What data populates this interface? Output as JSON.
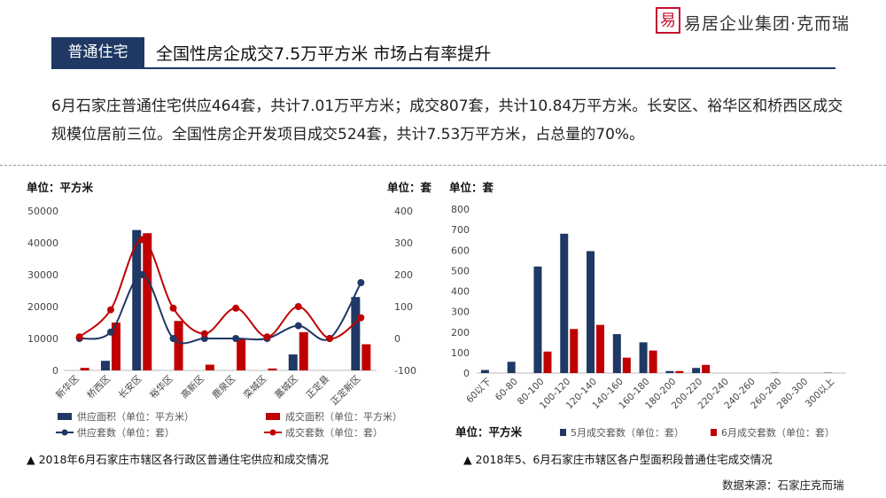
{
  "header": {
    "logo_glyph": "易",
    "brand": "易居企业集团·克而瑞",
    "tag": "普通住宅",
    "title": "全国性房企成交7.5万平方米 市场占有率提升"
  },
  "intro_text": "6月石家庄普通住宅供应464套，共计7.01万平方米；成交807套，共计10.84万平方米。长安区、裕华区和桥西区成交规模位居前三位。全国性房企开发项目成交524套，共计7.53万平方米，占总量的70%。",
  "chart_data": [
    {
      "type": "bar",
      "unit_left": "单位：平方米",
      "unit_right": "单位：套",
      "categories": [
        "新华区",
        "桥西区",
        "长安区",
        "裕华区",
        "高新区",
        "鹿泉区",
        "栾城区",
        "藁城区",
        "正定县",
        "正定新区"
      ],
      "y_left": {
        "min": 0,
        "max": 50000,
        "ticks": [
          0,
          10000,
          20000,
          30000,
          40000,
          50000
        ]
      },
      "y_right": {
        "min": -100,
        "max": 400,
        "ticks": [
          -100,
          0,
          100,
          200,
          300,
          400
        ]
      },
      "series": [
        {
          "name": "供应面积（单位：平方米）",
          "kind": "bar",
          "axis": "left",
          "color": "#1f3864",
          "values": [
            0,
            3000,
            44000,
            0,
            0,
            0,
            0,
            5000,
            0,
            23000
          ]
        },
        {
          "name": "成交面积（单位：平方米）",
          "kind": "bar",
          "axis": "left",
          "color": "#c00000",
          "values": [
            800,
            15000,
            43000,
            15500,
            1800,
            9800,
            600,
            12000,
            0,
            8200
          ]
        },
        {
          "name": "供应套数（单位：套）",
          "kind": "line",
          "axis": "right",
          "color": "#1f3864",
          "values": [
            0,
            20,
            200,
            0,
            0,
            0,
            0,
            40,
            0,
            175
          ]
        },
        {
          "name": "成交套数（单位：套）",
          "kind": "line",
          "axis": "right",
          "color": "#c00000",
          "values": [
            5,
            90,
            310,
            95,
            15,
            95,
            5,
            100,
            0,
            65
          ]
        }
      ],
      "caption": "▲ 2018年6月石家庄市辖区各行政区普通住宅供应和成交情况"
    },
    {
      "type": "bar",
      "unit_y": "单位：套",
      "unit_x": "单位：平方米",
      "categories": [
        "60以下",
        "60-80",
        "80-100",
        "100-120",
        "120-140",
        "140-160",
        "160-180",
        "180-200",
        "200-220",
        "220-240",
        "240-260",
        "260-280",
        "280-300",
        "300以上"
      ],
      "y": {
        "min": 0,
        "max": 800,
        "ticks": [
          0,
          100,
          200,
          300,
          400,
          500,
          600,
          700,
          800
        ]
      },
      "series": [
        {
          "name": "5月成交套数（单位：套）",
          "color": "#1f3864",
          "values": [
            15,
            55,
            520,
            680,
            595,
            190,
            150,
            10,
            25,
            0,
            0,
            2,
            0,
            2
          ]
        },
        {
          "name": "6月成交套数（单位：套）",
          "color": "#c00000",
          "values": [
            0,
            0,
            105,
            215,
            235,
            75,
            110,
            10,
            40,
            0,
            0,
            0,
            0,
            0
          ]
        }
      ],
      "caption": "▲ 2018年5、6月石家庄市辖区各户型面积段普通住宅成交情况"
    }
  ],
  "source_text": "数据来源：石家庄克而瑞"
}
